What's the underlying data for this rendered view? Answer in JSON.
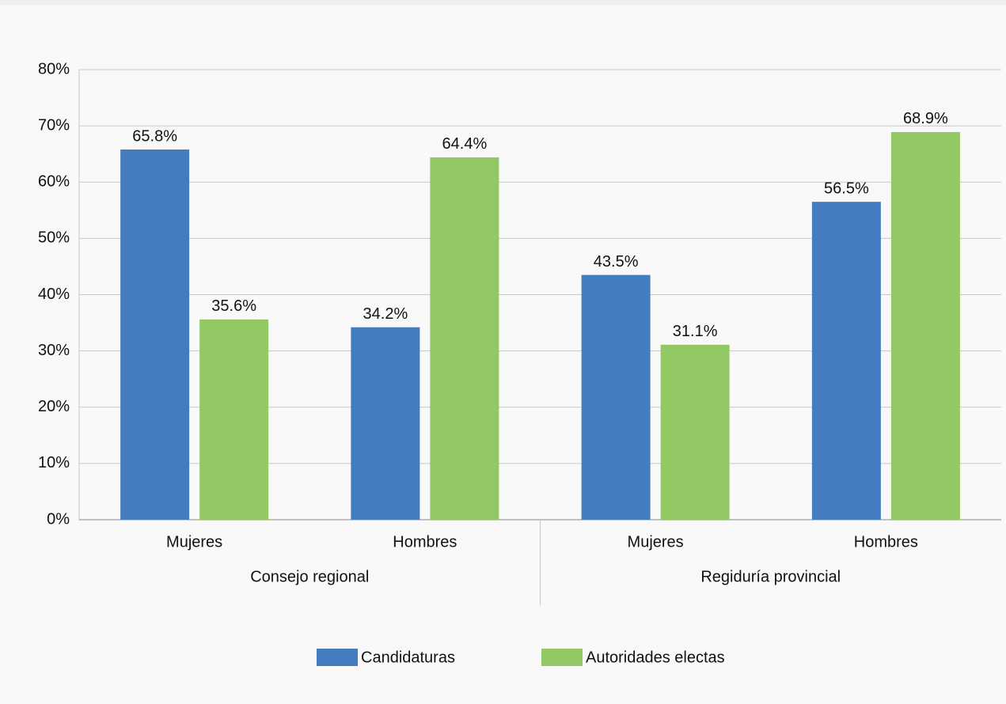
{
  "chart_data": {
    "type": "bar",
    "categories": [
      "Mujeres",
      "Hombres",
      "Mujeres",
      "Hombres"
    ],
    "groups": [
      "Consejo regional",
      "Regiduría provincial"
    ],
    "series": [
      {
        "name": "Candidaturas",
        "color": "#437cbf",
        "values": [
          65.8,
          34.2,
          43.5,
          56.5
        ],
        "value_labels": [
          "65.8%",
          "34.2%",
          "43.5%",
          "56.5%"
        ]
      },
      {
        "name": "Autoridades electas",
        "color": "#92c965",
        "values": [
          35.6,
          64.4,
          31.1,
          68.9
        ],
        "value_labels": [
          "35.6%",
          "64.4%",
          "31.1%",
          "68.9%"
        ]
      }
    ],
    "ylim": [
      0,
      80
    ],
    "yticks": [
      {
        "value": 0,
        "label": "0%"
      },
      {
        "value": 10,
        "label": "10%"
      },
      {
        "value": 20,
        "label": "20%"
      },
      {
        "value": 30,
        "label": "30%"
      },
      {
        "value": 40,
        "label": "40%"
      },
      {
        "value": 50,
        "label": "50%"
      },
      {
        "value": 60,
        "label": "60%"
      },
      {
        "value": 70,
        "label": "70%"
      },
      {
        "value": 80,
        "label": "80%"
      }
    ],
    "grid": true
  }
}
